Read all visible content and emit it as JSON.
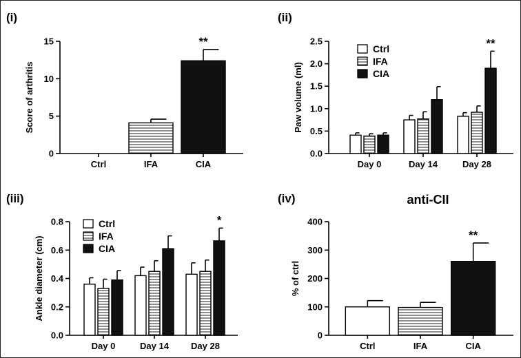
{
  "colors": {
    "ctrl_fill": "#ffffff",
    "ifa_fill": "#ffffff",
    "ifa_stripe": "#444444",
    "cia_fill": "#111111",
    "axis": "#000000",
    "background": "#ffffff"
  },
  "chart_data": [
    {
      "panel": "(i)",
      "type": "bar",
      "title": "",
      "xlabel": "",
      "ylabel": "Score of arthritis",
      "ylim": [
        0,
        15
      ],
      "yticks": [
        0,
        5,
        10,
        15
      ],
      "yticks_labels": [
        "0",
        "5",
        "10",
        "15"
      ],
      "categories": [
        "Ctrl",
        "IFA",
        "CIA"
      ],
      "values": [
        0,
        4.1,
        12.4
      ],
      "errors": [
        0,
        0.5,
        1.5
      ],
      "fills": [
        "ctrl",
        "ifa",
        "cia"
      ],
      "annotations": [
        "",
        "",
        "**"
      ]
    },
    {
      "panel": "(ii)",
      "type": "bar",
      "title": "",
      "xlabel": "",
      "ylabel": "Paw volume (ml)",
      "ylim": [
        0,
        2.5
      ],
      "yticks": [
        0,
        0.5,
        1,
        1.5,
        2,
        2.5
      ],
      "yticks_labels": [
        "0.0",
        "0.5",
        "1.0",
        "1.5",
        "2.0",
        "2.5"
      ],
      "categories": [
        "Day 0",
        "Day 14",
        "Day 28"
      ],
      "legend": {
        "position": "top-left",
        "entries": [
          "Ctrl",
          "IFA",
          "CIA"
        ]
      },
      "series": [
        {
          "name": "Ctrl",
          "fill": "ctrl",
          "values": [
            0.41,
            0.75,
            0.83
          ],
          "errors": [
            0.05,
            0.1,
            0.08
          ],
          "annotations": [
            "",
            "",
            ""
          ]
        },
        {
          "name": "IFA",
          "fill": "ifa",
          "values": [
            0.39,
            0.77,
            0.92
          ],
          "errors": [
            0.05,
            0.16,
            0.14
          ],
          "annotations": [
            "",
            "",
            ""
          ]
        },
        {
          "name": "CIA",
          "fill": "cia",
          "values": [
            0.41,
            1.2,
            1.9
          ],
          "errors": [
            0.05,
            0.29,
            0.38
          ],
          "annotations": [
            "",
            "",
            "**"
          ]
        }
      ]
    },
    {
      "panel": "(iii)",
      "type": "bar",
      "title": "",
      "xlabel": "",
      "ylabel": "Ankle diameter (cm)",
      "ylim": [
        0,
        0.8
      ],
      "yticks": [
        0,
        0.2,
        0.4,
        0.6,
        0.8
      ],
      "yticks_labels": [
        "0.0",
        "0.2",
        "0.4",
        "0.6",
        "0.8"
      ],
      "categories": [
        "Day 0",
        "Day 14",
        "Day 28"
      ],
      "legend": {
        "position": "top-left",
        "entries": [
          "Ctrl",
          "IFA",
          "CIA"
        ]
      },
      "series": [
        {
          "name": "Ctrl",
          "fill": "ctrl",
          "values": [
            0.36,
            0.42,
            0.43
          ],
          "errors": [
            0.045,
            0.06,
            0.08
          ],
          "annotations": [
            "",
            "",
            ""
          ]
        },
        {
          "name": "IFA",
          "fill": "ifa",
          "values": [
            0.33,
            0.45,
            0.45
          ],
          "errors": [
            0.065,
            0.075,
            0.08
          ],
          "annotations": [
            "",
            "",
            ""
          ]
        },
        {
          "name": "CIA",
          "fill": "cia",
          "values": [
            0.39,
            0.61,
            0.665
          ],
          "errors": [
            0.065,
            0.09,
            0.09
          ],
          "annotations": [
            "",
            "",
            "*"
          ]
        }
      ]
    },
    {
      "panel": "(iv)",
      "type": "bar",
      "title": "anti-CII",
      "xlabel": "",
      "ylabel": "% of ctrl",
      "ylim": [
        0,
        400
      ],
      "yticks": [
        0,
        100,
        200,
        300,
        400
      ],
      "yticks_labels": [
        "0",
        "100",
        "200",
        "300",
        "400"
      ],
      "categories": [
        "Ctrl",
        "IFA",
        "CIA"
      ],
      "values": [
        100,
        98,
        260
      ],
      "errors": [
        22,
        18,
        65
      ],
      "fills": [
        "ctrl",
        "ifa",
        "cia"
      ],
      "annotations": [
        "",
        "",
        "**"
      ]
    }
  ]
}
